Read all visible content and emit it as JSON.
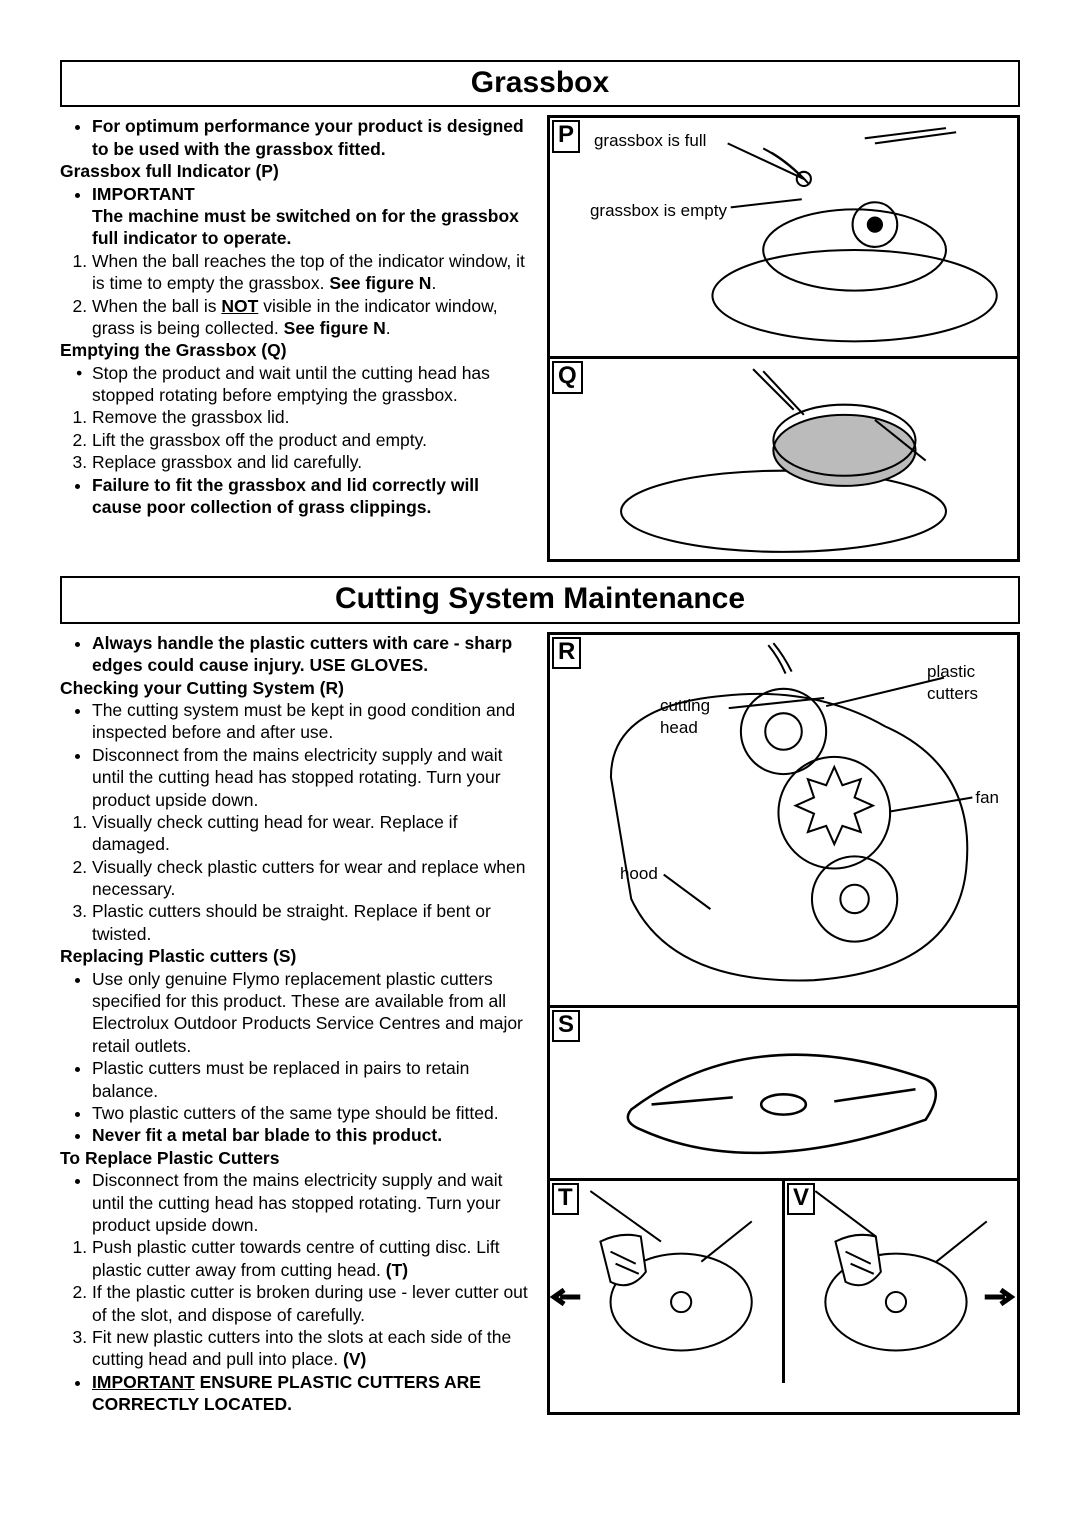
{
  "colors": {
    "bg": "#ffffff",
    "fg": "#000000",
    "border": "#000000"
  },
  "typography": {
    "body_size_pt": 13,
    "title_size_pt": 22,
    "family": "Arial",
    "line_height": 1.28
  },
  "sections": {
    "grassbox": {
      "title": "Grassbox",
      "items": [
        {
          "kind": "bullet",
          "bold": true,
          "text": "For optimum performance your product is designed to be used with the grassbox fitted."
        },
        {
          "kind": "heading",
          "bold": true,
          "text": "Grassbox full Indicator (P)"
        },
        {
          "kind": "bullet",
          "bold": true,
          "text": "IMPORTANT"
        },
        {
          "kind": "sub",
          "bold": true,
          "text": "The machine must be switched on for the grassbox full indicator to operate."
        },
        {
          "kind": "num",
          "n": 1,
          "html": "When the ball reaches the top of the indicator window, it is time to empty the grassbox.  <b>See figure N</b>."
        },
        {
          "kind": "num",
          "n": 2,
          "html": "When the ball is <b><u>NOT</u></b> visible in the indicator window, grass is being collected.  <b>See figure N</b>."
        },
        {
          "kind": "heading",
          "bold": true,
          "text": "Emptying the Grassbox (Q)"
        },
        {
          "kind": "bullet-plain",
          "text": "Stop the product and wait until the cutting head has stopped rotating before emptying the grassbox."
        },
        {
          "kind": "num",
          "n": 1,
          "text": "Remove the grassbox lid."
        },
        {
          "kind": "num",
          "n": 2,
          "text": "Lift the grassbox off the product and empty."
        },
        {
          "kind": "num",
          "n": 3,
          "text": "Replace grassbox and lid carefully."
        },
        {
          "kind": "bullet",
          "bold": true,
          "text": "Failure to fit the grassbox and lid correctly will cause poor collection of grass clippings."
        }
      ],
      "figures": {
        "P": {
          "label": "P",
          "callouts": {
            "full": "grassbox is full",
            "empty": "grassbox is empty"
          }
        },
        "Q": {
          "label": "Q"
        }
      }
    },
    "cutting": {
      "title": "Cutting System Maintenance",
      "items": [
        {
          "kind": "bullet",
          "bold": true,
          "text": "Always handle the plastic cutters with care - sharp edges could cause injury.  USE GLOVES."
        },
        {
          "kind": "heading",
          "bold": true,
          "text": "Checking your Cutting System (R)"
        },
        {
          "kind": "bullet",
          "text": "The cutting system must be kept in good condition and inspected before and after use."
        },
        {
          "kind": "bullet",
          "text": "Disconnect from the mains electricity supply and wait until the cutting head has stopped rotating.  Turn your product upside down."
        },
        {
          "kind": "num",
          "n": 1,
          "text": "Visually check cutting head for wear.  Replace if damaged."
        },
        {
          "kind": "num",
          "n": 2,
          "text": "Visually check plastic cutters for wear and replace when necessary."
        },
        {
          "kind": "num",
          "n": 3,
          "text": "Plastic cutters should be straight.  Replace if bent or twisted."
        },
        {
          "kind": "heading",
          "bold": true,
          "text": "Replacing Plastic cutters (S)"
        },
        {
          "kind": "bullet",
          "text": "Use only genuine Flymo replacement plastic cutters specified for this product.  These are available from all Electrolux Outdoor Products Service Centres and major retail outlets."
        },
        {
          "kind": "bullet",
          "text": "Plastic cutters must be replaced in pairs to retain balance."
        },
        {
          "kind": "bullet",
          "text": "Two plastic cutters of the same type should be fitted."
        },
        {
          "kind": "bullet",
          "bold": true,
          "text": "Never fit a metal bar blade to this product."
        },
        {
          "kind": "heading",
          "bold": true,
          "text": "To Replace Plastic Cutters"
        },
        {
          "kind": "bullet",
          "text": "Disconnect from the mains electricity supply and wait until the cutting head has stopped rotating.  Turn your product upside down."
        },
        {
          "kind": "num",
          "n": 1,
          "html": "Push plastic cutter towards centre of cutting disc. Lift plastic cutter away from cutting head. <b>(T)</b>"
        },
        {
          "kind": "num",
          "n": 2,
          "text": "If the plastic cutter is broken during use - lever cutter out of the slot, and dispose of carefully."
        },
        {
          "kind": "num",
          "n": 3,
          "html": "Fit new plastic cutters into the slots at each side of the cutting head and pull into place. <b>(V)</b>"
        },
        {
          "kind": "bullet",
          "bold": true,
          "html": "<u>IMPORTANT</u>   ENSURE PLASTIC CUTTERS ARE CORRECTLY LOCATED."
        }
      ],
      "figures": {
        "R": {
          "label": "R",
          "callouts": {
            "plastic_cutters": "plastic cutters",
            "cutting_head": "cutting head",
            "fan": "fan",
            "hood": "hood"
          }
        },
        "S": {
          "label": "S"
        },
        "T": {
          "label": "T"
        },
        "V": {
          "label": "V"
        }
      }
    }
  }
}
